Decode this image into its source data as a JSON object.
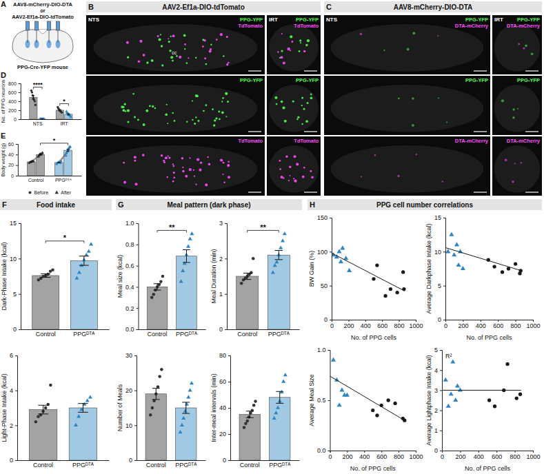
{
  "figure": {
    "A": {
      "letter": "A",
      "labels": [
        "AAV8-mCherry-DIO-DTA",
        "or",
        "AAV2-Ef1a-DIO-tdTomato"
      ],
      "caption": "PPG-Cre-YFP mouse"
    },
    "B": {
      "letter": "B",
      "title": "AAV2-Ef1a-DIO-tdTomato",
      "regions": [
        "NTS",
        "IRT"
      ],
      "landmark": "cc",
      "rows": [
        {
          "labels": [
            "PPG-YFP",
            "TdTomato"
          ],
          "colors": [
            "#4cff4c",
            "#ff4cff"
          ]
        },
        {
          "labels": [
            "PPG-YFP"
          ],
          "colors": [
            "#4cff4c"
          ]
        },
        {
          "labels": [
            "TdTomato"
          ],
          "colors": [
            "#ff4cff"
          ]
        }
      ]
    },
    "C": {
      "letter": "C",
      "title": "AAV8-mCherry-DIO-DTA",
      "regions": [
        "NTS",
        "IRT"
      ],
      "rows": [
        {
          "labels": [
            "PPG-YFP",
            "DTA-mCherry"
          ],
          "colors": [
            "#4cff4c",
            "#ff4cff"
          ]
        },
        {
          "labels": [
            "PPG-YFP"
          ],
          "colors": [
            "#4cff4c"
          ]
        },
        {
          "labels": [
            "DTA-mCherry"
          ],
          "colors": [
            "#ff4cff"
          ]
        }
      ]
    },
    "headers": [
      {
        "letter": "F",
        "title": "Food intake"
      },
      {
        "letter": "G",
        "title": "Meal pattern (dark phase)"
      },
      {
        "letter": "H",
        "title": "PPG cell number correlations"
      }
    ]
  },
  "chart_data": [
    {
      "type": "bar",
      "panel": "D",
      "y_label": "No. of PPG neurons",
      "categories": [
        "NTS",
        "IRT"
      ],
      "ylim": [
        0,
        800
      ],
      "yticks": [
        0,
        200,
        400,
        600,
        800
      ],
      "series": [
        {
          "color": "#333333",
          "marker": "circle",
          "values": [
            484,
            200
          ],
          "errors": [
            40,
            15
          ],
          "points": [
            [
              640,
              600,
              530,
              470,
              430,
              400,
              320
            ],
            [
              270,
              240,
              210,
              190,
              180,
              160,
              150
            ]
          ]
        },
        {
          "color": "#2e86c1",
          "marker": "triangle",
          "values": [
            2,
            109
          ],
          "errors": [
            1,
            14
          ],
          "points": [
            [
              0,
              2,
              5,
              3,
              1,
              0,
              4,
              2
            ],
            [
              170,
              140,
              130,
              110,
              100,
              90,
              80,
              50
            ]
          ]
        }
      ],
      "annotations": [
        {
          "text": "****",
          "category": "NTS"
        },
        {
          "text": "*",
          "category": "IRT"
        }
      ]
    },
    {
      "type": "paired_bar",
      "panel": "E",
      "y_label": "Body weight (g)",
      "categories": [
        "Control",
        "PPGᴰᵀᴬ"
      ],
      "ylim": [
        0,
        60
      ],
      "yticks": [
        0,
        20,
        40,
        60
      ],
      "legend": "bottom",
      "series": [
        {
          "name": "Before",
          "marker": "circle",
          "colors": [
            "#333333",
            "#2e86c1"
          ],
          "values": [
            26.1,
            24.9
          ],
          "errors": [
            0.5,
            0.5
          ],
          "points": [
            [
              24,
              25,
              26,
              26,
              27,
              28,
              27
            ],
            [
              22,
              24,
              25,
              25,
              26,
              26,
              24,
              27
            ]
          ]
        },
        {
          "name": "After",
          "marker": "triangle",
          "colors": [
            "#333333",
            "#2e86c1"
          ],
          "values": [
            40,
            48
          ],
          "errors": [
            0.9,
            2.1
          ],
          "points": [
            [
              36,
              38,
              40,
              41,
              40,
              42,
              43
            ],
            [
              38,
              42,
              45,
              48,
              50,
              52,
              54,
              55
            ]
          ]
        }
      ],
      "annotations": [
        {
          "text": "*",
          "series": "After"
        }
      ]
    },
    {
      "type": "bar",
      "y_label": "Dark-Phase Intake (kcal)",
      "categories": [
        "Control",
        "PPGᴰᵀᴬ"
      ],
      "ylim": [
        0,
        15
      ],
      "yticks": [
        0,
        5,
        10,
        15
      ],
      "series": [
        {
          "color": "#333333",
          "marker": "circle",
          "values": [
            7.6,
            null
          ],
          "errors": [
            0.25,
            null
          ],
          "points": [
            [
              7.0,
              7.2,
              7.5,
              7.6,
              7.8,
              8.2,
              8.4
            ],
            null
          ]
        },
        {
          "color": "#2e86c1",
          "marker": "triangle",
          "values": [
            null,
            9.7
          ],
          "errors": [
            null,
            0.65
          ],
          "points": [
            null,
            [
              7.2,
              8.0,
              9.0,
              9.8,
              10.5,
              11.0,
              12.0
            ]
          ]
        }
      ],
      "annotations": [
        {
          "text": "*"
        }
      ]
    },
    {
      "type": "bar",
      "y_label": "Light-Phase Intake (kcal)",
      "categories": [
        "Control",
        "PPGᴰᵀᴬ"
      ],
      "ylim": [
        0,
        6
      ],
      "yticks": [
        0,
        2,
        4,
        6
      ],
      "series": [
        {
          "color": "#333333",
          "marker": "circle",
          "values": [
            2.9,
            null
          ],
          "errors": [
            0.25,
            null
          ],
          "points": [
            [
              2.2,
              2.5,
              2.6,
              2.8,
              3.0,
              3.2,
              4.3
            ],
            null
          ]
        },
        {
          "color": "#2e86c1",
          "marker": "triangle",
          "values": [
            null,
            3.0
          ],
          "errors": [
            null,
            0.25
          ],
          "points": [
            null,
            [
              2.0,
              2.5,
              2.9,
              3.2,
              3.4,
              3.6
            ]
          ]
        }
      ]
    },
    {
      "type": "bar",
      "y_label": "Meal size (kcal)",
      "categories": [
        "Control",
        "PPGᴰᵀᴬ"
      ],
      "ylim": [
        0,
        1
      ],
      "yticks": [
        {
          "value": 0,
          "label": "0.0"
        },
        0.2,
        0.4,
        0.6,
        0.8,
        {
          "value": 1,
          "label": "1.0"
        }
      ],
      "series": [
        {
          "color": "#333333",
          "marker": "circle",
          "values": [
            0.4,
            null
          ],
          "errors": [
            0.03,
            null
          ],
          "points": [
            [
              0.3,
              0.33,
              0.37,
              0.4,
              0.42,
              0.45,
              0.5
            ],
            null
          ]
        },
        {
          "color": "#2e86c1",
          "marker": "triangle",
          "values": [
            null,
            0.69
          ],
          "errors": [
            null,
            0.06
          ],
          "points": [
            null,
            [
              0.45,
              0.55,
              0.62,
              0.7,
              0.78,
              0.85,
              0.9
            ]
          ]
        }
      ],
      "annotations": [
        {
          "text": "**"
        }
      ]
    },
    {
      "type": "bar",
      "y_label": "Meal Duration (min)",
      "categories": [
        "Control",
        "PPGᴰᵀᴬ"
      ],
      "ylim": [
        0,
        3
      ],
      "yticks": [
        0,
        1,
        2,
        3
      ],
      "series": [
        {
          "color": "#333333",
          "marker": "circle",
          "values": [
            1.5,
            null
          ],
          "errors": [
            0.09,
            null
          ],
          "points": [
            [
              1.3,
              1.4,
              1.45,
              1.5,
              1.55,
              1.6,
              2.0
            ],
            null
          ]
        },
        {
          "color": "#2e86c1",
          "marker": "triangle",
          "values": [
            null,
            2.1
          ],
          "errors": [
            null,
            0.13
          ],
          "points": [
            null,
            [
              1.6,
              1.8,
              1.9,
              2.1,
              2.3,
              2.5,
              2.7
            ]
          ]
        }
      ],
      "annotations": [
        {
          "text": "**"
        }
      ]
    },
    {
      "type": "bar",
      "y_label": "Number of Meals",
      "categories": [
        "Control",
        "PPGᴰᵀᴬ"
      ],
      "ylim": [
        0,
        30
      ],
      "yticks": [
        0,
        10,
        20,
        30
      ],
      "series": [
        {
          "color": "#333333",
          "marker": "circle",
          "values": [
            19,
            null
          ],
          "errors": [
            1.6,
            null
          ],
          "points": [
            [
              13,
              15,
              17,
              19,
              21,
              24,
              26
            ],
            null
          ]
        },
        {
          "color": "#2e86c1",
          "marker": "triangle",
          "values": [
            null,
            15
          ],
          "errors": [
            null,
            1.6
          ],
          "points": [
            null,
            [
              8,
              10,
              12,
              14,
              16,
              18,
              20,
              22
            ]
          ]
        }
      ]
    },
    {
      "type": "bar",
      "y_label": "Inter-meal intervals (min)",
      "categories": [
        "Control",
        "PPGᴰᵀᴬ"
      ],
      "ylim": [
        0,
        80
      ],
      "yticks": [
        0,
        20,
        40,
        60,
        80
      ],
      "series": [
        {
          "color": "#333333",
          "marker": "circle",
          "values": [
            35,
            null
          ],
          "errors": [
            2.5,
            null
          ],
          "points": [
            [
              25,
              28,
              30,
              33,
              36,
              38,
              42,
              45
            ],
            null
          ]
        },
        {
          "color": "#2e86c1",
          "marker": "triangle",
          "values": [
            null,
            48
          ],
          "errors": [
            null,
            4.5
          ],
          "points": [
            null,
            [
              32,
              36,
              40,
              45,
              52,
              60,
              65
            ]
          ]
        }
      ]
    },
    {
      "type": "scatter",
      "x_label": "No. of PPG cells",
      "y_label": "BW Gain (%)",
      "xlim": [
        0,
        1000
      ],
      "xticks": [
        0,
        200,
        400,
        600,
        800,
        1000
      ],
      "ylim": [
        0,
        150
      ],
      "yticks": [
        0,
        50,
        100,
        150
      ],
      "series": [
        {
          "color": "#2e86c1",
          "marker": "triangle",
          "x": [
            20,
            60,
            90,
            110,
            130,
            170,
            210
          ],
          "values": [
            95,
            92,
            100,
            85,
            105,
            90,
            72
          ]
        },
        {
          "color": "#1a1a1a",
          "marker": "circle",
          "x": [
            500,
            540,
            640,
            700,
            780,
            850,
            860
          ],
          "values": [
            60,
            80,
            35,
            45,
            40,
            70,
            45
          ]
        },
        {
          "type": "line",
          "color": "#1a1a1a",
          "x": [
            0,
            870
          ],
          "values": [
            98,
            42
          ]
        }
      ]
    },
    {
      "type": "scatter",
      "x_label": "No. of PPG cells",
      "y_label": "Average Darkphase Intake (kcal)",
      "xlim": [
        0,
        1000
      ],
      "xticks": [
        0,
        200,
        400,
        600,
        800,
        1000
      ],
      "ylim": [
        0,
        15
      ],
      "yticks": [
        0,
        5,
        10,
        15
      ],
      "series": [
        {
          "color": "#2e86c1",
          "marker": "triangle",
          "x": [
            30,
            70,
            100,
            130,
            150,
            170,
            200
          ],
          "values": [
            10.0,
            12.5,
            9.5,
            11.0,
            8.0,
            10.0,
            7.5
          ]
        },
        {
          "color": "#1a1a1a",
          "marker": "circle",
          "x": [
            490,
            560,
            650,
            720,
            800,
            850,
            860
          ],
          "values": [
            8.8,
            7.8,
            7.0,
            7.5,
            8.2,
            6.8,
            7.2
          ]
        },
        {
          "type": "line",
          "color": "#1a1a1a",
          "x": [
            0,
            870
          ],
          "values": [
            10.6,
            7.2
          ]
        }
      ]
    },
    {
      "type": "scatter",
      "x_label": "No. of PPG cells",
      "y_label": "Average Meal Size",
      "xlim": [
        0,
        1000
      ],
      "xticks": [
        0,
        200,
        400,
        600,
        800,
        1000
      ],
      "ylim": [
        0,
        1
      ],
      "yticks": [
        {
          "value": 0,
          "label": "0.0"
        },
        0.5,
        {
          "value": 1,
          "label": "1.0"
        }
      ],
      "series": [
        {
          "color": "#2e86c1",
          "marker": "triangle",
          "x": [
            40,
            80,
            110,
            140,
            170,
            200
          ],
          "values": [
            0.9,
            0.7,
            0.45,
            0.6,
            0.55,
            0.55
          ]
        },
        {
          "color": "#1a1a1a",
          "marker": "circle",
          "x": [
            500,
            550,
            600,
            680,
            760,
            850,
            870
          ],
          "values": [
            0.4,
            0.35,
            0.45,
            0.5,
            0.47,
            0.32,
            0.3
          ]
        },
        {
          "type": "line",
          "color": "#1a1a1a",
          "x": [
            0,
            870
          ],
          "values": [
            0.74,
            0.3
          ]
        }
      ]
    },
    {
      "type": "scatter",
      "x_label": "No. of PPG cells",
      "y_label": "Average Lightphase Intake (kcal)",
      "xlim": [
        0,
        1000
      ],
      "xticks": [
        0,
        200,
        400,
        600,
        800,
        1000
      ],
      "ylim": [
        0,
        5
      ],
      "yticks": [
        0,
        1,
        2,
        3,
        4,
        5
      ],
      "series": [
        {
          "color": "#2e86c1",
          "marker": "triangle",
          "x": [
            40,
            70,
            100,
            120,
            150,
            170,
            200
          ],
          "values": [
            3.5,
            2.2,
            2.8,
            4.4,
            2.5,
            3.2,
            3.0
          ]
        },
        {
          "color": "#1a1a1a",
          "marker": "circle",
          "x": [
            520,
            580,
            680,
            720,
            820,
            860
          ],
          "values": [
            2.5,
            2.2,
            3.0,
            4.3,
            2.6,
            2.8
          ]
        },
        {
          "type": "line",
          "color": "#1a1a1a",
          "x": [
            0,
            870
          ],
          "values": [
            3.0,
            3.0
          ]
        }
      ],
      "annotations": [
        {
          "text": "R²"
        }
      ]
    }
  ]
}
